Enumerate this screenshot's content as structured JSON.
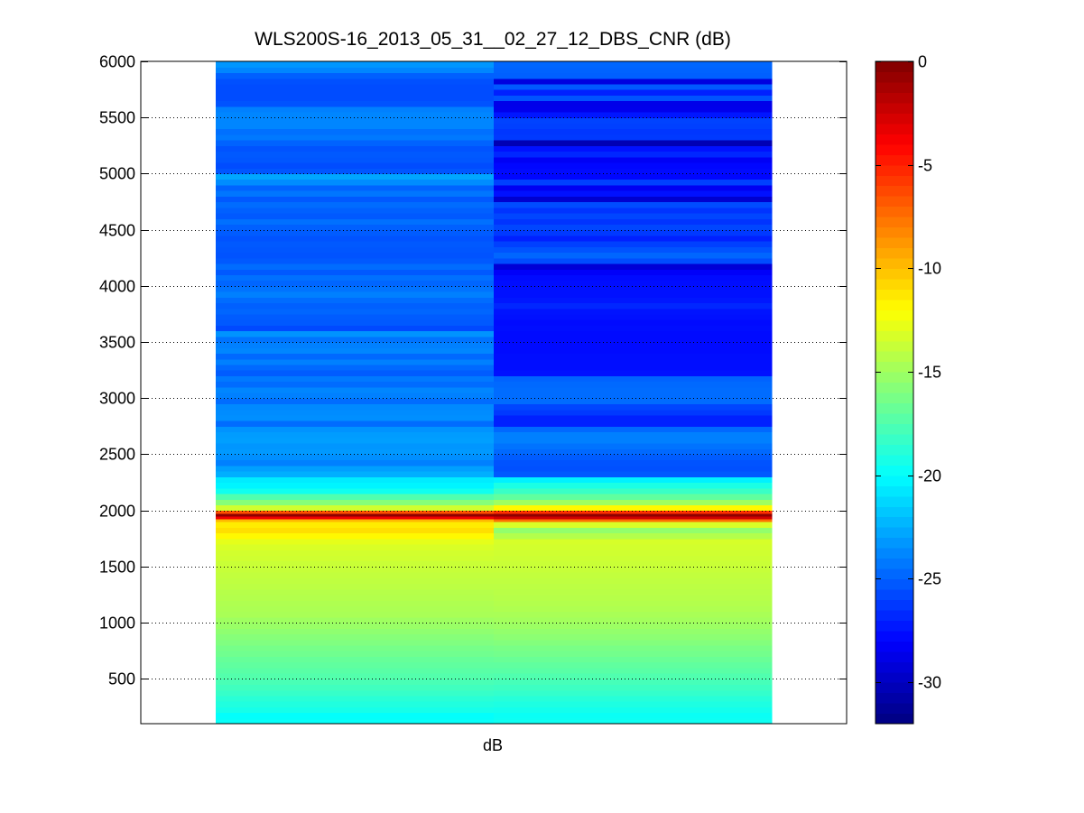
{
  "chart_data": {
    "type": "heatmap",
    "title": "WLS200S-16_2013_05_31__02_27_12_DBS_CNR (dB)",
    "xlabel": "dB",
    "ylabel": "",
    "ylim": [
      100,
      6000
    ],
    "y_ticks": [
      500,
      1000,
      1500,
      2000,
      2500,
      3000,
      3500,
      4000,
      4500,
      5000,
      5500,
      6000
    ],
    "y_grid": true,
    "colormap": "jet",
    "colorbar": {
      "range": [
        -32,
        0
      ],
      "ticks": [
        0,
        -5,
        -10,
        -15,
        -20,
        -25,
        -30
      ],
      "placement": "right"
    },
    "bin_width": 50,
    "columns": [
      {
        "bins": [
          [
            100,
            150,
            -19.8
          ],
          [
            150,
            200,
            -19.9
          ],
          [
            200,
            250,
            -19.3
          ],
          [
            250,
            300,
            -19.0
          ],
          [
            300,
            350,
            -18.7
          ],
          [
            350,
            400,
            -18.3
          ],
          [
            400,
            450,
            -18.0
          ],
          [
            450,
            500,
            -17.7
          ],
          [
            500,
            550,
            -17.4
          ],
          [
            550,
            600,
            -17.2
          ],
          [
            600,
            650,
            -17.0
          ],
          [
            650,
            700,
            -16.8
          ],
          [
            700,
            750,
            -16.5
          ],
          [
            750,
            800,
            -16.3
          ],
          [
            800,
            850,
            -16.0
          ],
          [
            850,
            900,
            -15.8
          ],
          [
            900,
            950,
            -15.5
          ],
          [
            950,
            1000,
            -15.2
          ],
          [
            1000,
            1050,
            -15.0
          ],
          [
            1050,
            1100,
            -14.7
          ],
          [
            1100,
            1150,
            -14.6
          ],
          [
            1150,
            1200,
            -14.5
          ],
          [
            1200,
            1250,
            -14.4
          ],
          [
            1250,
            1300,
            -14.3
          ],
          [
            1300,
            1350,
            -14.1
          ],
          [
            1350,
            1400,
            -14.0
          ],
          [
            1400,
            1450,
            -13.9
          ],
          [
            1450,
            1500,
            -13.8
          ],
          [
            1500,
            1550,
            -13.7
          ],
          [
            1550,
            1600,
            -13.5
          ],
          [
            1600,
            1650,
            -13.4
          ],
          [
            1650,
            1700,
            -13.2
          ],
          [
            1700,
            1750,
            -12.8
          ],
          [
            1750,
            1800,
            -11.8
          ],
          [
            1800,
            1850,
            -11.0
          ],
          [
            1850,
            1900,
            -11.4
          ],
          [
            1900,
            1925,
            -9.8
          ],
          [
            1925,
            1950,
            -3.5
          ],
          [
            1950,
            1975,
            -0.5
          ],
          [
            1975,
            2000,
            -6.5
          ],
          [
            2000,
            2050,
            -13.5
          ],
          [
            2050,
            2100,
            -15.8
          ],
          [
            2100,
            2150,
            -17.5
          ],
          [
            2150,
            2200,
            -19.5
          ],
          [
            2200,
            2250,
            -20.3
          ],
          [
            2250,
            2300,
            -20.6
          ],
          [
            2300,
            2350,
            -22.5
          ],
          [
            2350,
            2400,
            -23.0
          ],
          [
            2400,
            2450,
            -24.0
          ],
          [
            2450,
            2500,
            -23.5
          ],
          [
            2500,
            2550,
            -23.2
          ],
          [
            2550,
            2600,
            -23.3
          ],
          [
            2600,
            2650,
            -23.0
          ],
          [
            2650,
            2700,
            -23.1
          ],
          [
            2700,
            2750,
            -23.4
          ],
          [
            2750,
            2800,
            -24.6
          ],
          [
            2800,
            2850,
            -23.5
          ],
          [
            2850,
            2900,
            -23.6
          ],
          [
            2900,
            2950,
            -23.7
          ],
          [
            2950,
            3000,
            -24.6
          ],
          [
            3000,
            3050,
            -24.0
          ],
          [
            3050,
            3100,
            -23.8
          ],
          [
            3100,
            3150,
            -24.6
          ],
          [
            3150,
            3200,
            -24.2
          ],
          [
            3200,
            3250,
            -25.1
          ],
          [
            3250,
            3300,
            -24.7
          ],
          [
            3300,
            3350,
            -24.0
          ],
          [
            3350,
            3400,
            -24.7
          ],
          [
            3400,
            3450,
            -23.8
          ],
          [
            3450,
            3500,
            -24.0
          ],
          [
            3500,
            3550,
            -24.4
          ],
          [
            3550,
            3600,
            -23.4
          ],
          [
            3600,
            3650,
            -25.7
          ],
          [
            3650,
            3700,
            -25.2
          ],
          [
            3700,
            3750,
            -25.1
          ],
          [
            3750,
            3800,
            -24.8
          ],
          [
            3800,
            3850,
            -25.0
          ],
          [
            3850,
            3900,
            -24.6
          ],
          [
            3900,
            3950,
            -24.0
          ],
          [
            3950,
            4000,
            -24.4
          ],
          [
            4000,
            4050,
            -24.8
          ],
          [
            4050,
            4100,
            -24.5
          ],
          [
            4100,
            4150,
            -25.2
          ],
          [
            4150,
            4200,
            -24.6
          ],
          [
            4200,
            4250,
            -25.2
          ],
          [
            4250,
            4300,
            -25.4
          ],
          [
            4300,
            4350,
            -25.3
          ],
          [
            4350,
            4400,
            -25.2
          ],
          [
            4400,
            4450,
            -25.4
          ],
          [
            4450,
            4500,
            -25.1
          ],
          [
            4500,
            4550,
            -25.0
          ],
          [
            4550,
            4600,
            -24.5
          ],
          [
            4600,
            4650,
            -25.2
          ],
          [
            4650,
            4700,
            -25.0
          ],
          [
            4700,
            4750,
            -24.6
          ],
          [
            4750,
            4800,
            -25.2
          ],
          [
            4800,
            4850,
            -24.3
          ],
          [
            4850,
            4900,
            -24.9
          ],
          [
            4900,
            4950,
            -23.6
          ],
          [
            4950,
            5000,
            -22.8
          ],
          [
            5000,
            5050,
            -25.3
          ],
          [
            5050,
            5100,
            -25.6
          ],
          [
            5100,
            5150,
            -25.3
          ],
          [
            5150,
            5200,
            -25.2
          ],
          [
            5200,
            5250,
            -25.4
          ],
          [
            5250,
            5300,
            -24.9
          ],
          [
            5300,
            5350,
            -24.2
          ],
          [
            5350,
            5400,
            -24.5
          ],
          [
            5400,
            5450,
            -23.8
          ],
          [
            5450,
            5500,
            -23.8
          ],
          [
            5500,
            5550,
            -23.8
          ],
          [
            5550,
            5600,
            -24.0
          ],
          [
            5600,
            5650,
            -25.4
          ],
          [
            5650,
            5700,
            -25.6
          ],
          [
            5700,
            5750,
            -25.6
          ],
          [
            5750,
            5800,
            -25.6
          ],
          [
            5800,
            5850,
            -25.5
          ],
          [
            5850,
            5900,
            -25.0
          ],
          [
            5900,
            5950,
            -23.8
          ],
          [
            5950,
            6000,
            -23.3
          ]
        ]
      },
      {
        "bins": [
          [
            100,
            150,
            -19.6
          ],
          [
            150,
            200,
            -19.7
          ],
          [
            200,
            250,
            -19.4
          ],
          [
            250,
            300,
            -19.1
          ],
          [
            300,
            350,
            -18.8
          ],
          [
            350,
            400,
            -18.4
          ],
          [
            400,
            450,
            -18.1
          ],
          [
            450,
            500,
            -17.8
          ],
          [
            500,
            550,
            -17.5
          ],
          [
            550,
            600,
            -17.2
          ],
          [
            600,
            650,
            -17.0
          ],
          [
            650,
            700,
            -16.7
          ],
          [
            700,
            750,
            -16.4
          ],
          [
            750,
            800,
            -16.2
          ],
          [
            800,
            850,
            -15.9
          ],
          [
            850,
            900,
            -15.6
          ],
          [
            900,
            950,
            -15.4
          ],
          [
            950,
            1000,
            -15.1
          ],
          [
            1000,
            1050,
            -14.9
          ],
          [
            1050,
            1100,
            -14.7
          ],
          [
            1100,
            1150,
            -14.5
          ],
          [
            1150,
            1200,
            -14.4
          ],
          [
            1200,
            1250,
            -14.3
          ],
          [
            1250,
            1300,
            -14.2
          ],
          [
            1300,
            1350,
            -14.1
          ],
          [
            1350,
            1400,
            -14.0
          ],
          [
            1400,
            1450,
            -13.9
          ],
          [
            1450,
            1500,
            -13.8
          ],
          [
            1500,
            1550,
            -13.7
          ],
          [
            1550,
            1600,
            -13.6
          ],
          [
            1600,
            1650,
            -13.5
          ],
          [
            1650,
            1700,
            -13.4
          ],
          [
            1700,
            1750,
            -13.3
          ],
          [
            1750,
            1800,
            -14.4
          ],
          [
            1800,
            1850,
            -15.4
          ],
          [
            1850,
            1900,
            -13.2
          ],
          [
            1900,
            1925,
            -7.5
          ],
          [
            1925,
            1950,
            -2.5
          ],
          [
            1950,
            1975,
            -0.5
          ],
          [
            1975,
            2000,
            -5.5
          ],
          [
            2000,
            2050,
            -11.8
          ],
          [
            2050,
            2100,
            -15.0
          ],
          [
            2100,
            2150,
            -17.0
          ],
          [
            2150,
            2200,
            -18.2
          ],
          [
            2200,
            2250,
            -19.2
          ],
          [
            2250,
            2300,
            -20.4
          ],
          [
            2300,
            2350,
            -25.2
          ],
          [
            2350,
            2400,
            -25.5
          ],
          [
            2400,
            2450,
            -25.4
          ],
          [
            2450,
            2500,
            -25.1
          ],
          [
            2500,
            2550,
            -24.7
          ],
          [
            2550,
            2600,
            -24.4
          ],
          [
            2600,
            2650,
            -24.0
          ],
          [
            2650,
            2700,
            -24.0
          ],
          [
            2700,
            2750,
            -24.7
          ],
          [
            2750,
            2800,
            -27.0
          ],
          [
            2800,
            2850,
            -27.0
          ],
          [
            2850,
            2900,
            -26.2
          ],
          [
            2900,
            2950,
            -25.8
          ],
          [
            2950,
            3000,
            -24.6
          ],
          [
            3000,
            3050,
            -24.6
          ],
          [
            3050,
            3100,
            -24.6
          ],
          [
            3100,
            3150,
            -24.7
          ],
          [
            3150,
            3200,
            -24.9
          ],
          [
            3200,
            3250,
            -27.5
          ],
          [
            3250,
            3300,
            -27.6
          ],
          [
            3300,
            3350,
            -27.6
          ],
          [
            3350,
            3400,
            -27.6
          ],
          [
            3400,
            3450,
            -27.7
          ],
          [
            3450,
            3500,
            -27.7
          ],
          [
            3500,
            3550,
            -27.7
          ],
          [
            3550,
            3600,
            -27.7
          ],
          [
            3600,
            3650,
            -27.6
          ],
          [
            3650,
            3700,
            -27.7
          ],
          [
            3700,
            3750,
            -27.5
          ],
          [
            3750,
            3800,
            -27.4
          ],
          [
            3800,
            3850,
            -26.8
          ],
          [
            3850,
            3900,
            -27.3
          ],
          [
            3900,
            3950,
            -27.5
          ],
          [
            3950,
            4000,
            -27.5
          ],
          [
            4000,
            4050,
            -27.6
          ],
          [
            4050,
            4100,
            -27.7
          ],
          [
            4100,
            4150,
            -28.2
          ],
          [
            4150,
            4200,
            -29.3
          ],
          [
            4200,
            4250,
            -25.6
          ],
          [
            4250,
            4300,
            -24.8
          ],
          [
            4300,
            4350,
            -25.4
          ],
          [
            4350,
            4400,
            -26.0
          ],
          [
            4400,
            4450,
            -27.0
          ],
          [
            4450,
            4500,
            -26.2
          ],
          [
            4500,
            4550,
            -25.8
          ],
          [
            4550,
            4600,
            -26.4
          ],
          [
            4600,
            4650,
            -25.8
          ],
          [
            4650,
            4700,
            -26.4
          ],
          [
            4700,
            4750,
            -25.6
          ],
          [
            4750,
            4800,
            -29.5
          ],
          [
            4800,
            4850,
            -27.5
          ],
          [
            4850,
            4900,
            -28.4
          ],
          [
            4900,
            4950,
            -26.0
          ],
          [
            4950,
            5000,
            -27.8
          ],
          [
            5000,
            5050,
            -27.7
          ],
          [
            5050,
            5100,
            -27.8
          ],
          [
            5100,
            5150,
            -28.3
          ],
          [
            5150,
            5200,
            -26.8
          ],
          [
            5200,
            5250,
            -27.5
          ],
          [
            5250,
            5300,
            -30.4
          ],
          [
            5300,
            5350,
            -26.2
          ],
          [
            5350,
            5400,
            -26.3
          ],
          [
            5400,
            5450,
            -26.0
          ],
          [
            5450,
            5500,
            -25.9
          ],
          [
            5500,
            5550,
            -27.3
          ],
          [
            5550,
            5600,
            -28.6
          ],
          [
            5600,
            5650,
            -28.7
          ],
          [
            5650,
            5700,
            -25.4
          ],
          [
            5700,
            5750,
            -27.0
          ],
          [
            5750,
            5800,
            -25.2
          ],
          [
            5800,
            5850,
            -29.0
          ],
          [
            5850,
            5900,
            -25.0
          ],
          [
            5900,
            5950,
            -24.9
          ],
          [
            5950,
            6000,
            -24.8
          ]
        ]
      }
    ]
  }
}
